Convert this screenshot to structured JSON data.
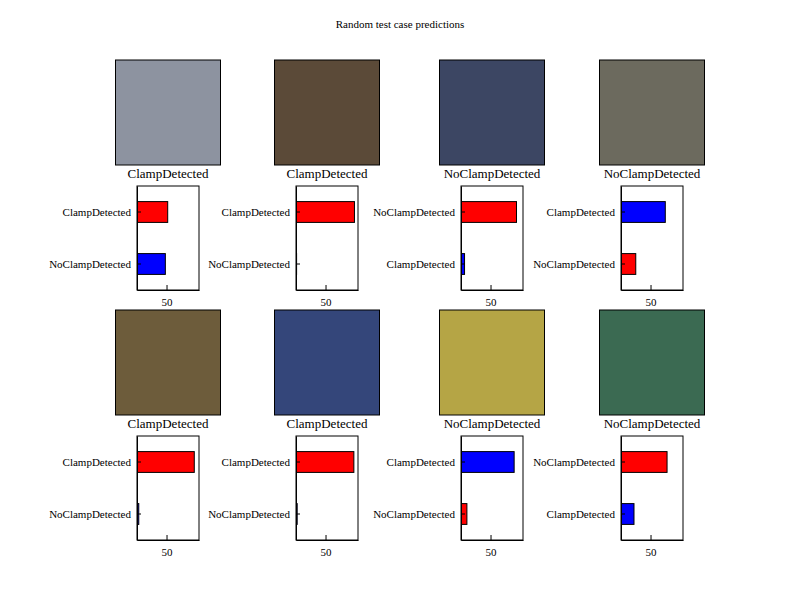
{
  "title": "Random test case predictions",
  "chart_data": [
    {
      "type": "bar",
      "orientation": "horizontal",
      "title": "ClampDetected",
      "categories": [
        "ClampDetected",
        "NoClampDetected"
      ],
      "values": [
        52,
        48
      ],
      "colors": [
        "#ff0000",
        "#0000ff"
      ],
      "xlim": [
        0,
        105
      ],
      "xticks": [
        50
      ]
    },
    {
      "type": "bar",
      "orientation": "horizontal",
      "title": "ClampDetected",
      "categories": [
        "ClampDetected",
        "NoClampDetected"
      ],
      "values": [
        99,
        1
      ],
      "colors": [
        "#ff0000",
        "#0000ff"
      ],
      "xlim": [
        0,
        105
      ],
      "xticks": [
        50
      ]
    },
    {
      "type": "bar",
      "orientation": "horizontal",
      "title": "NoClampDetected",
      "categories": [
        "NoClampDetected",
        "ClampDetected"
      ],
      "values": [
        94,
        6
      ],
      "colors": [
        "#ff0000",
        "#0000ff"
      ],
      "xlim": [
        0,
        105
      ],
      "xticks": [
        50
      ]
    },
    {
      "type": "bar",
      "orientation": "horizontal",
      "title": "NoClampDetected",
      "categories": [
        "ClampDetected",
        "NoClampDetected"
      ],
      "values": [
        75,
        25
      ],
      "colors": [
        "#0000ff",
        "#ff0000"
      ],
      "xlim": [
        0,
        105
      ],
      "xticks": [
        50
      ]
    },
    {
      "type": "bar",
      "orientation": "horizontal",
      "title": "ClampDetected",
      "categories": [
        "ClampDetected",
        "NoClampDetected"
      ],
      "values": [
        97,
        3
      ],
      "colors": [
        "#ff0000",
        "#0000ff"
      ],
      "xlim": [
        0,
        105
      ],
      "xticks": [
        50
      ]
    },
    {
      "type": "bar",
      "orientation": "horizontal",
      "title": "ClampDetected",
      "categories": [
        "ClampDetected",
        "NoClampDetected"
      ],
      "values": [
        98,
        2
      ],
      "colors": [
        "#ff0000",
        "#0000ff"
      ],
      "xlim": [
        0,
        105
      ],
      "xticks": [
        50
      ]
    },
    {
      "type": "bar",
      "orientation": "horizontal",
      "title": "NoClampDetected",
      "categories": [
        "ClampDetected",
        "NoClampDetected"
      ],
      "values": [
        90,
        10
      ],
      "colors": [
        "#0000ff",
        "#ff0000"
      ],
      "xlim": [
        0,
        105
      ],
      "xticks": [
        50
      ]
    },
    {
      "type": "bar",
      "orientation": "horizontal",
      "title": "NoClampDetected",
      "categories": [
        "NoClampDetected",
        "ClampDetected"
      ],
      "values": [
        78,
        22
      ],
      "colors": [
        "#ff0000",
        "#0000ff"
      ],
      "xlim": [
        0,
        105
      ],
      "xticks": [
        50
      ]
    }
  ]
}
